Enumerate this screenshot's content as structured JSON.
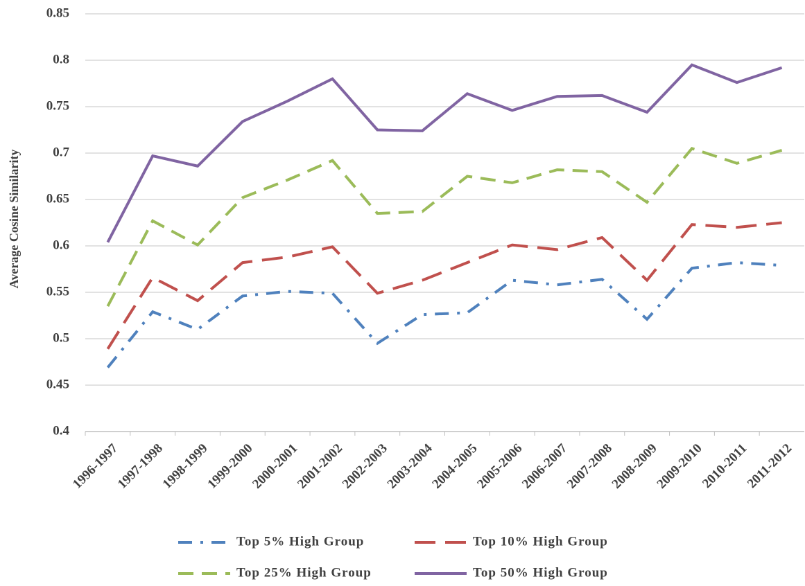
{
  "chart_data": {
    "type": "line",
    "y_label": "Average Cosine Similarity",
    "categories": [
      "1996-1997",
      "1997-1998",
      "1998-1999",
      "1999-2000",
      "2000-2001",
      "2001-2002",
      "2002-2003",
      "2003-2004",
      "2004-2005",
      "2005-2006",
      "2006-2007",
      "2007-2008",
      "2008-2009",
      "2009-2010",
      "2010-2011",
      "2011-2012"
    ],
    "series": [
      {
        "name": "Top 5% High Group",
        "color": "#4f81bd",
        "dash": "dashdot",
        "values": [
          0.469,
          0.529,
          0.51,
          0.546,
          0.551,
          0.549,
          0.495,
          0.526,
          0.528,
          0.563,
          0.558,
          0.564,
          0.521,
          0.576,
          0.582,
          0.579
        ]
      },
      {
        "name": "Top 10% High Group",
        "color": "#c0504d",
        "dash": "longdash",
        "values": [
          0.489,
          0.566,
          0.541,
          0.582,
          0.588,
          0.599,
          0.549,
          0.563,
          0.582,
          0.601,
          0.596,
          0.609,
          0.563,
          0.623,
          0.62,
          0.625
        ]
      },
      {
        "name": "Top 25% High Group",
        "color": "#9bbb59",
        "dash": "dash",
        "values": [
          0.535,
          0.627,
          0.601,
          0.652,
          0.671,
          0.692,
          0.635,
          0.637,
          0.675,
          0.668,
          0.682,
          0.68,
          0.647,
          0.705,
          0.689,
          0.703
        ]
      },
      {
        "name": "Top 50% High Group",
        "color": "#8064a2",
        "dash": "solid",
        "values": [
          0.604,
          0.697,
          0.686,
          0.734,
          0.756,
          0.78,
          0.725,
          0.724,
          0.764,
          0.746,
          0.761,
          0.762,
          0.744,
          0.795,
          0.776,
          0.792
        ]
      }
    ],
    "ylim": [
      0.4,
      0.85
    ],
    "yticks": [
      0.4,
      0.45,
      0.5,
      0.55,
      0.6,
      0.65,
      0.7,
      0.75,
      0.8,
      0.85
    ],
    "grid": true
  }
}
